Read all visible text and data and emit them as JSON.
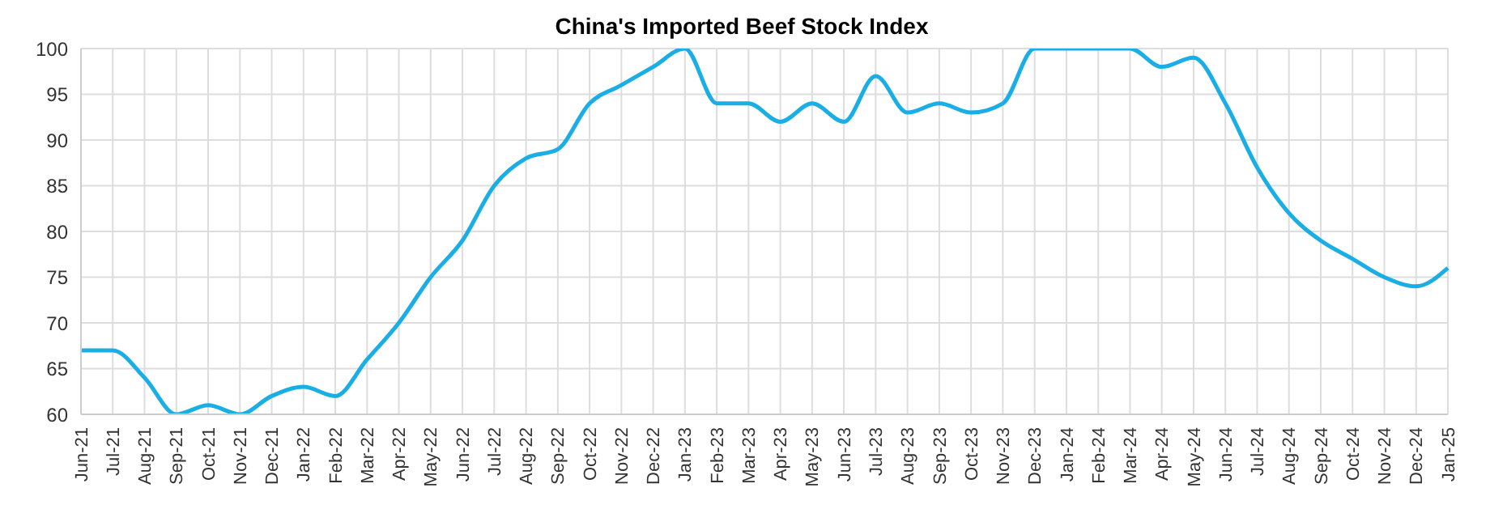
{
  "chart_data": {
    "type": "line",
    "title": "China's Imported Beef Stock Index",
    "categories": [
      "Jun-21",
      "Jul-21",
      "Aug-21",
      "Sep-21",
      "Oct-21",
      "Nov-21",
      "Dec-21",
      "Jan-22",
      "Feb-22",
      "Mar-22",
      "Apr-22",
      "May-22",
      "Jun-22",
      "Jul-22",
      "Aug-22",
      "Sep-22",
      "Oct-22",
      "Nov-22",
      "Dec-22",
      "Jan-23",
      "Feb-23",
      "Mar-23",
      "Apr-23",
      "May-23",
      "Jun-23",
      "Jul-23",
      "Aug-23",
      "Sep-23",
      "Oct-23",
      "Nov-23",
      "Dec-23",
      "Jan-24",
      "Feb-24",
      "Mar-24",
      "Apr-24",
      "May-24",
      "Jun-24",
      "Jul-24",
      "Aug-24",
      "Sep-24",
      "Oct-24",
      "Nov-24",
      "Dec-24",
      "Jan-25"
    ],
    "values": [
      67,
      67,
      64,
      60,
      61,
      60,
      62,
      63,
      62,
      66,
      70,
      75,
      79,
      85,
      88,
      89,
      94,
      96,
      98,
      100,
      94,
      94,
      92,
      94,
      92,
      97,
      93,
      94,
      93,
      94,
      100,
      100,
      100,
      100,
      98,
      99,
      94,
      87,
      82,
      79,
      77,
      75,
      74,
      76
    ],
    "color": "#1aaee6",
    "ylim": [
      60,
      100
    ],
    "yticks": [
      60,
      65,
      70,
      75,
      80,
      85,
      90,
      95,
      100
    ],
    "grid": true,
    "marker": "none",
    "line_style": "solid"
  }
}
